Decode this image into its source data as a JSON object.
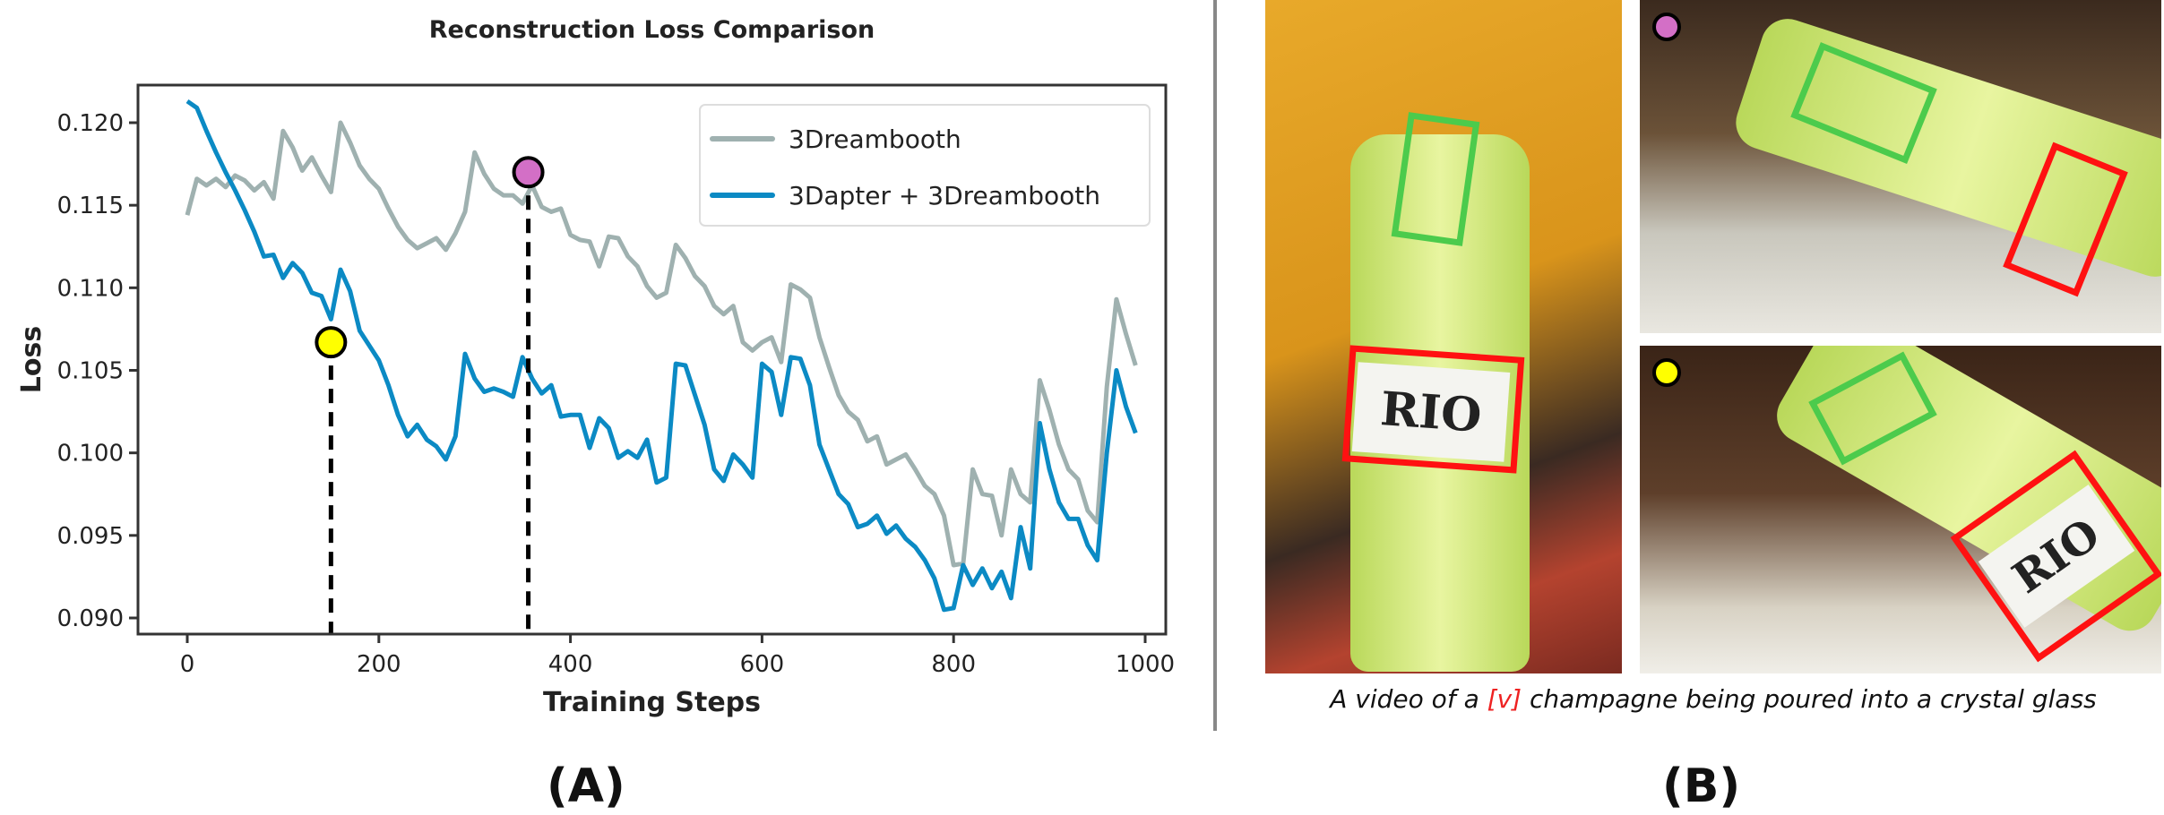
{
  "chart_data": {
    "type": "line",
    "title": "Reconstruction Loss Comparison",
    "xlabel": "Training Steps",
    "ylabel": "Loss",
    "xlim": [
      -50,
      1040
    ],
    "ylim": [
      0.0888,
      0.1225
    ],
    "xticks": [
      "0",
      "200",
      "400",
      "600",
      "800",
      "1000"
    ],
    "yticks": [
      "0.090",
      "0.095",
      "0.100",
      "0.105",
      "0.110",
      "0.115",
      "0.120"
    ],
    "grid": false,
    "legend_position": "top-right",
    "x": [
      0,
      10,
      20,
      30,
      40,
      50,
      60,
      70,
      80,
      90,
      100,
      110,
      120,
      130,
      140,
      150,
      160,
      170,
      180,
      190,
      200,
      210,
      220,
      230,
      240,
      250,
      260,
      270,
      280,
      290,
      300,
      310,
      320,
      330,
      340,
      350,
      360,
      370,
      380,
      390,
      400,
      410,
      420,
      430,
      440,
      450,
      460,
      470,
      480,
      490,
      500,
      510,
      520,
      530,
      540,
      550,
      560,
      570,
      580,
      590,
      600,
      610,
      620,
      630,
      640,
      650,
      660,
      670,
      680,
      690,
      700,
      710,
      720,
      730,
      740,
      750,
      760,
      770,
      780,
      790,
      800,
      810,
      820,
      830,
      840,
      850,
      860,
      870,
      880,
      890,
      900,
      910,
      920,
      930,
      940,
      950,
      960,
      970,
      980,
      990
    ],
    "series": [
      {
        "name": "3Dreambooth",
        "color": "#9fb1b0",
        "values": [
          0.1144,
          0.1166,
          0.1162,
          0.1166,
          0.1161,
          0.1168,
          0.1165,
          0.1159,
          0.1164,
          0.1154,
          0.1195,
          0.1185,
          0.1171,
          0.1179,
          0.1168,
          0.1158,
          0.12,
          0.1188,
          0.1174,
          0.1166,
          0.116,
          0.1148,
          0.1137,
          0.1129,
          0.1124,
          0.1127,
          0.113,
          0.1123,
          0.1133,
          0.1146,
          0.1182,
          0.1169,
          0.116,
          0.1156,
          0.1156,
          0.1151,
          0.1162,
          0.1149,
          0.1146,
          0.1148,
          0.1132,
          0.1129,
          0.1128,
          0.1113,
          0.1131,
          0.113,
          0.1119,
          0.1113,
          0.1101,
          0.1094,
          0.1097,
          0.1126,
          0.1118,
          0.1107,
          0.1101,
          0.1089,
          0.1084,
          0.1089,
          0.1067,
          0.1062,
          0.1067,
          0.107,
          0.1055,
          0.1102,
          0.1099,
          0.1094,
          0.107,
          0.1052,
          0.1035,
          0.1025,
          0.102,
          0.1007,
          0.101,
          0.0993,
          0.0996,
          0.0999,
          0.099,
          0.098,
          0.0975,
          0.0962,
          0.0932,
          0.0933,
          0.099,
          0.0975,
          0.0974,
          0.095,
          0.099,
          0.0975,
          0.097,
          0.1044,
          0.1026,
          0.1005,
          0.099,
          0.0984,
          0.0965,
          0.0958,
          0.104,
          0.1093,
          0.1072,
          0.1053
        ]
      },
      {
        "name": "3Dapter + 3Dreambooth",
        "color": "#0b8ac4",
        "values": [
          0.1213,
          0.1209,
          0.1195,
          0.1182,
          0.117,
          0.1159,
          0.1147,
          0.1134,
          0.1119,
          0.112,
          0.1106,
          0.1115,
          0.1109,
          0.1097,
          0.1095,
          0.1081,
          0.1111,
          0.1098,
          0.1074,
          0.1065,
          0.1056,
          0.1041,
          0.1023,
          0.101,
          0.1017,
          0.1008,
          0.1004,
          0.0996,
          0.101,
          0.106,
          0.1045,
          0.1037,
          0.1039,
          0.1037,
          0.1034,
          0.1058,
          0.1045,
          0.1036,
          0.1041,
          0.1022,
          0.1023,
          0.1023,
          0.1003,
          0.1021,
          0.1015,
          0.0997,
          0.1001,
          0.0997,
          0.1008,
          0.0982,
          0.0985,
          0.1054,
          0.1053,
          0.1035,
          0.1017,
          0.099,
          0.0983,
          0.0999,
          0.0993,
          0.0985,
          0.1054,
          0.1049,
          0.1023,
          0.1058,
          0.1057,
          0.1041,
          0.1005,
          0.099,
          0.0975,
          0.0969,
          0.0955,
          0.0957,
          0.0962,
          0.0951,
          0.0956,
          0.0948,
          0.0943,
          0.0935,
          0.0924,
          0.0905,
          0.0906,
          0.0932,
          0.092,
          0.093,
          0.0918,
          0.0928,
          0.0912,
          0.0955,
          0.093,
          0.1018,
          0.099,
          0.097,
          0.096,
          0.096,
          0.0944,
          0.0935,
          0.1,
          0.105,
          0.1028,
          0.1012
        ]
      }
    ],
    "markers": [
      {
        "x": 150,
        "y": 0.1067,
        "color": "#ffff00"
      },
      {
        "x": 356,
        "y": 0.117,
        "color": "#d36fc6"
      }
    ]
  },
  "panel_b": {
    "caption_prefix": "A video of a ",
    "caption_token": "[v]",
    "caption_suffix": " champagne being poured into a crystal glass",
    "label_text": "RIO",
    "marker_colors": {
      "top": "#d36fc6",
      "bottom": "#ffff00"
    },
    "box_colors": {
      "red": "#ff1111",
      "green": "#4ccb4c"
    }
  },
  "labels": {
    "a": "(A)",
    "b": "(B)"
  }
}
